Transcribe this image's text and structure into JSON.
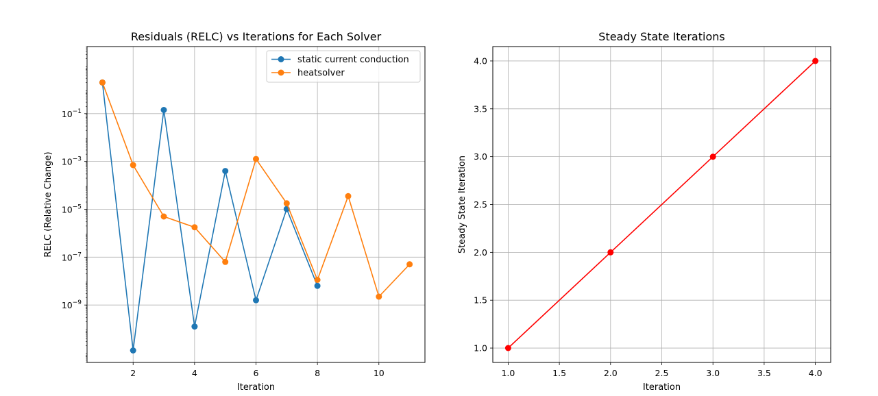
{
  "chart_data": [
    {
      "type": "line",
      "title": "Residuals (RELC) vs Iterations for Each Solver",
      "xlabel": "Iteration",
      "ylabel": "RELC (Relative Change)",
      "yscale": "log",
      "xlim": [
        0.5,
        11.5
      ],
      "ylim_log10": [
        -11.4,
        1.8
      ],
      "xticks": [
        2,
        4,
        6,
        8,
        10
      ],
      "yticks_exp": [
        -9,
        -7,
        -5,
        -3,
        -1
      ],
      "grid": true,
      "legend_position": "top-right",
      "series": [
        {
          "name": "static current conduction",
          "color": "#1f77b4",
          "x": [
            1,
            2,
            3,
            4,
            5,
            6,
            7,
            8
          ],
          "log10_y": [
            0.3,
            -10.9,
            -0.85,
            -9.9,
            -3.4,
            -8.8,
            -4.99,
            -8.2
          ]
        },
        {
          "name": "heatsolver",
          "color": "#ff7f0e",
          "x": [
            1,
            2,
            3,
            4,
            5,
            6,
            7,
            8,
            9,
            10,
            11
          ],
          "log10_y": [
            0.3,
            -3.15,
            -5.3,
            -5.75,
            -7.2,
            -2.9,
            -4.75,
            -7.95,
            -4.45,
            -8.65,
            -7.3
          ]
        }
      ]
    },
    {
      "type": "line",
      "title": "Steady State Iterations",
      "xlabel": "Iteration",
      "ylabel": "Steady State Iteration",
      "xlim": [
        0.85,
        4.15
      ],
      "ylim": [
        0.85,
        4.15
      ],
      "xticks": [
        "1.0",
        "1.5",
        "2.0",
        "2.5",
        "3.0",
        "3.5",
        "4.0"
      ],
      "yticks": [
        "1.0",
        "1.5",
        "2.0",
        "2.5",
        "3.0",
        "3.5",
        "4.0"
      ],
      "grid": true,
      "series": [
        {
          "name": "steady state",
          "color": "#ff0000",
          "x": [
            1,
            2,
            3,
            4
          ],
          "y": [
            1,
            2,
            3,
            4
          ]
        }
      ]
    }
  ]
}
